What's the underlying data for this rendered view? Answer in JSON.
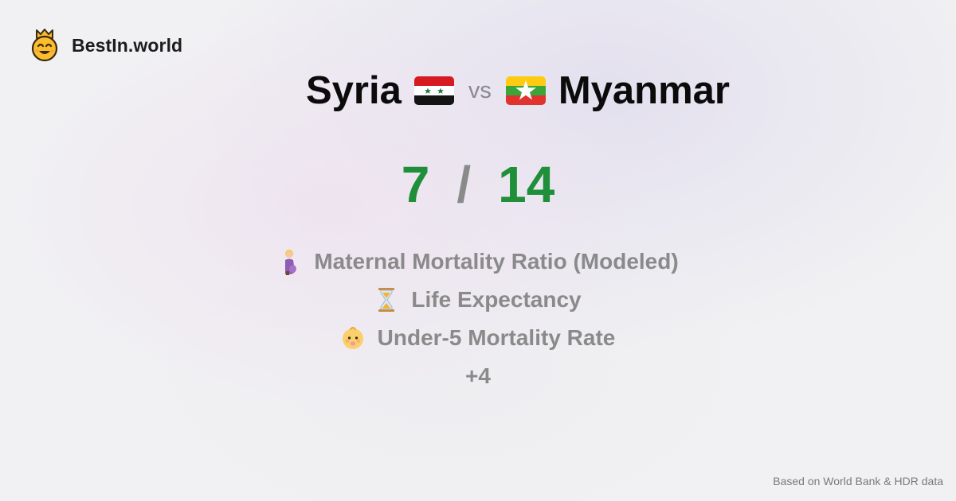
{
  "brand": {
    "name": "BestIn.world",
    "logo_icon": "smiling-crown-face-icon"
  },
  "comparison": {
    "left": {
      "name": "Syria",
      "flag_icon": "syria-flag-icon"
    },
    "vs_label": "vs",
    "right": {
      "name": "Myanmar",
      "flag_icon": "myanmar-flag-icon"
    }
  },
  "scores": {
    "left": "7",
    "separator": "/",
    "right": "14"
  },
  "metrics": [
    {
      "label": "Maternal Mortality Ratio (Modeled)",
      "icon": "pregnant-woman-icon"
    },
    {
      "label": "Life Expectancy",
      "icon": "hourglass-icon"
    },
    {
      "label": "Under-5 Mortality Rate",
      "icon": "baby-face-icon"
    }
  ],
  "more_label": "+4",
  "footer": {
    "source": "Based on World Bank & HDR data"
  },
  "colors": {
    "score": "#1f8f3a",
    "muted": "#8a8a8a",
    "title": "#0b0b0c",
    "background": "#f1f1f3"
  }
}
